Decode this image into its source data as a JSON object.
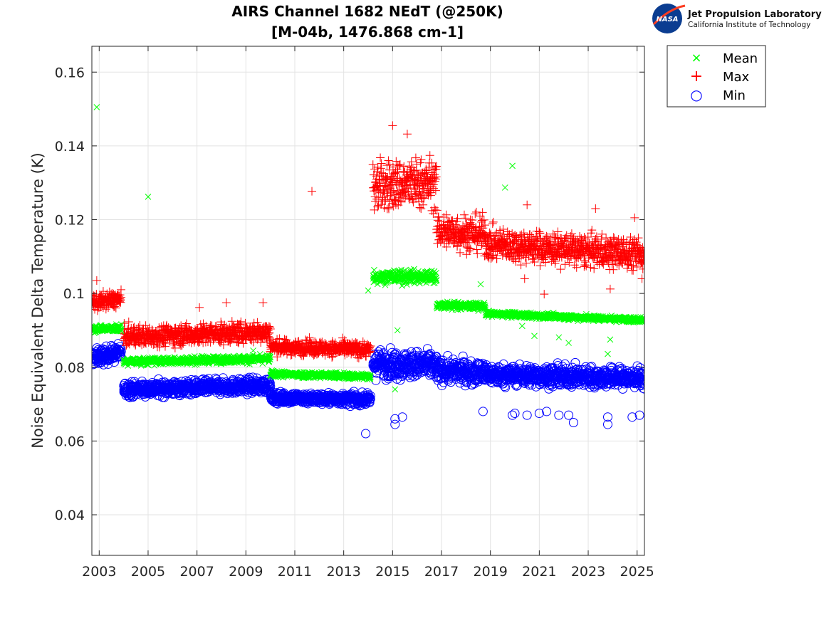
{
  "chart_data": {
    "type": "scatter",
    "title": "AIRS Channel 1682 NEdT (@250K)",
    "subtitle": "[M-04b, 1476.868 cm-1]",
    "xlabel": "",
    "ylabel": "Noise Equivalent Delta Temperature (K)",
    "xlim": [
      2002.7,
      2025.3
    ],
    "ylim": [
      0.029,
      0.167
    ],
    "xticks": [
      2003,
      2005,
      2007,
      2009,
      2011,
      2013,
      2015,
      2017,
      2019,
      2021,
      2023,
      2025
    ],
    "xtick_labels": [
      "2003",
      "2005",
      "2007",
      "2009",
      "2011",
      "2013",
      "2015",
      "2017",
      "2019",
      "2021",
      "2023",
      "2025"
    ],
    "yticks": [
      0.04,
      0.06,
      0.08,
      0.1,
      0.12,
      0.14,
      0.16
    ],
    "ytick_labels": [
      "0.04",
      "0.06",
      "0.08",
      "0.1",
      "0.12",
      "0.14",
      "0.16"
    ],
    "grid": true,
    "legend_position": "top-right outside",
    "series": [
      {
        "name": "Mean",
        "marker": "x",
        "color": "#00ff00",
        "segments": [
          {
            "x": [
              2002.7,
              2003.9
            ],
            "y": [
              0.0905,
              0.0905
            ],
            "spread": 0.0008
          },
          {
            "x": [
              2004.0,
              2010.0
            ],
            "y": [
              0.0815,
              0.0823
            ],
            "spread": 0.0008
          },
          {
            "x": [
              2010.0,
              2014.1
            ],
            "y": [
              0.0782,
              0.0775
            ],
            "spread": 0.0007
          },
          {
            "x": [
              2014.2,
              2016.8
            ],
            "y": [
              0.1045,
              0.1045
            ],
            "spread": 0.0015
          },
          {
            "x": [
              2016.8,
              2018.8
            ],
            "y": [
              0.0968,
              0.0965
            ],
            "spread": 0.0008
          },
          {
            "x": [
              2018.8,
              2025.3
            ],
            "y": [
              0.0945,
              0.0928
            ],
            "spread": 0.0006
          }
        ],
        "outliers": [
          {
            "x": 2002.9,
            "y": 0.1505
          },
          {
            "x": 2005.0,
            "y": 0.1262
          },
          {
            "x": 2019.9,
            "y": 0.1346
          },
          {
            "x": 2019.6,
            "y": 0.1287
          },
          {
            "x": 2018.6,
            "y": 0.1025
          },
          {
            "x": 2014.0,
            "y": 0.1008
          },
          {
            "x": 2020.3,
            "y": 0.0912
          },
          {
            "x": 2020.8,
            "y": 0.0885
          },
          {
            "x": 2021.8,
            "y": 0.0881
          },
          {
            "x": 2022.2,
            "y": 0.0866
          },
          {
            "x": 2023.8,
            "y": 0.0836
          },
          {
            "x": 2023.9,
            "y": 0.0875
          },
          {
            "x": 2009.3,
            "y": 0.0845
          },
          {
            "x": 2015.2,
            "y": 0.09
          },
          {
            "x": 2015.1,
            "y": 0.074
          }
        ]
      },
      {
        "name": "Max",
        "marker": "+",
        "color": "#ff0000",
        "segments": [
          {
            "x": [
              2002.7,
              2003.9
            ],
            "y": [
              0.0975,
              0.0985
            ],
            "spread": 0.0018
          },
          {
            "x": [
              2004.0,
              2010.0
            ],
            "y": [
              0.0883,
              0.0895
            ],
            "spread": 0.0022
          },
          {
            "x": [
              2010.0,
              2014.1
            ],
            "y": [
              0.0855,
              0.0848
            ],
            "spread": 0.0016
          },
          {
            "x": [
              2014.2,
              2016.8
            ],
            "y": [
              0.129,
              0.13
            ],
            "spread": 0.0055
          },
          {
            "x": [
              2016.8,
              2018.8
            ],
            "y": [
              0.117,
              0.116
            ],
            "spread": 0.004
          },
          {
            "x": [
              2018.8,
              2025.3
            ],
            "y": [
              0.1135,
              0.1105
            ],
            "spread": 0.0035
          }
        ],
        "outliers": [
          {
            "x": 2002.9,
            "y": 0.1035
          },
          {
            "x": 2011.7,
            "y": 0.1277
          },
          {
            "x": 2015.0,
            "y": 0.1455
          },
          {
            "x": 2015.6,
            "y": 0.1432
          },
          {
            "x": 2021.2,
            "y": 0.0998
          },
          {
            "x": 2023.9,
            "y": 0.1012
          },
          {
            "x": 2008.2,
            "y": 0.0975
          },
          {
            "x": 2009.7,
            "y": 0.0975
          },
          {
            "x": 2007.1,
            "y": 0.0962
          },
          {
            "x": 2020.5,
            "y": 0.124
          },
          {
            "x": 2023.3,
            "y": 0.123
          },
          {
            "x": 2024.9,
            "y": 0.1205
          },
          {
            "x": 2020.4,
            "y": 0.104
          },
          {
            "x": 2025.2,
            "y": 0.104
          }
        ]
      },
      {
        "name": "Min",
        "marker": "o",
        "color": "#0000ff",
        "segments": [
          {
            "x": [
              2002.7,
              2003.9
            ],
            "y": [
              0.0825,
              0.084
            ],
            "spread": 0.0018
          },
          {
            "x": [
              2004.0,
              2010.0
            ],
            "y": [
              0.074,
              0.075
            ],
            "spread": 0.0016
          },
          {
            "x": [
              2010.0,
              2014.1
            ],
            "y": [
              0.0718,
              0.0712
            ],
            "spread": 0.0012
          },
          {
            "x": [
              2014.2,
              2016.8
            ],
            "y": [
              0.081,
              0.0805
            ],
            "spread": 0.003
          },
          {
            "x": [
              2016.8,
              2018.8
            ],
            "y": [
              0.079,
              0.0785
            ],
            "spread": 0.0025
          },
          {
            "x": [
              2018.8,
              2025.3
            ],
            "y": [
              0.078,
              0.077
            ],
            "spread": 0.0022
          }
        ],
        "outliers": [
          {
            "x": 2013.9,
            "y": 0.062
          },
          {
            "x": 2015.1,
            "y": 0.066
          },
          {
            "x": 2015.1,
            "y": 0.0645
          },
          {
            "x": 2015.4,
            "y": 0.0665
          },
          {
            "x": 2020.0,
            "y": 0.0675
          },
          {
            "x": 2020.5,
            "y": 0.067
          },
          {
            "x": 2021.0,
            "y": 0.0675
          },
          {
            "x": 2021.3,
            "y": 0.068
          },
          {
            "x": 2021.8,
            "y": 0.067
          },
          {
            "x": 2022.2,
            "y": 0.067
          },
          {
            "x": 2022.4,
            "y": 0.065
          },
          {
            "x": 2023.8,
            "y": 0.0645
          },
          {
            "x": 2023.8,
            "y": 0.0665
          },
          {
            "x": 2024.8,
            "y": 0.0665
          },
          {
            "x": 2025.1,
            "y": 0.067
          },
          {
            "x": 2019.9,
            "y": 0.067
          },
          {
            "x": 2018.7,
            "y": 0.068
          }
        ]
      }
    ]
  },
  "logo": {
    "agency": "NASA",
    "name": "Jet Propulsion Laboratory",
    "subtitle": "California Institute of Technology"
  },
  "legend_markers": {
    "Mean": "×",
    "Max": "+",
    "Min": "○"
  },
  "colors": {
    "mean": "#00ff00",
    "max": "#ff0000",
    "min": "#0000ff",
    "grid": "#e3e3e3",
    "axis": "#262626"
  }
}
